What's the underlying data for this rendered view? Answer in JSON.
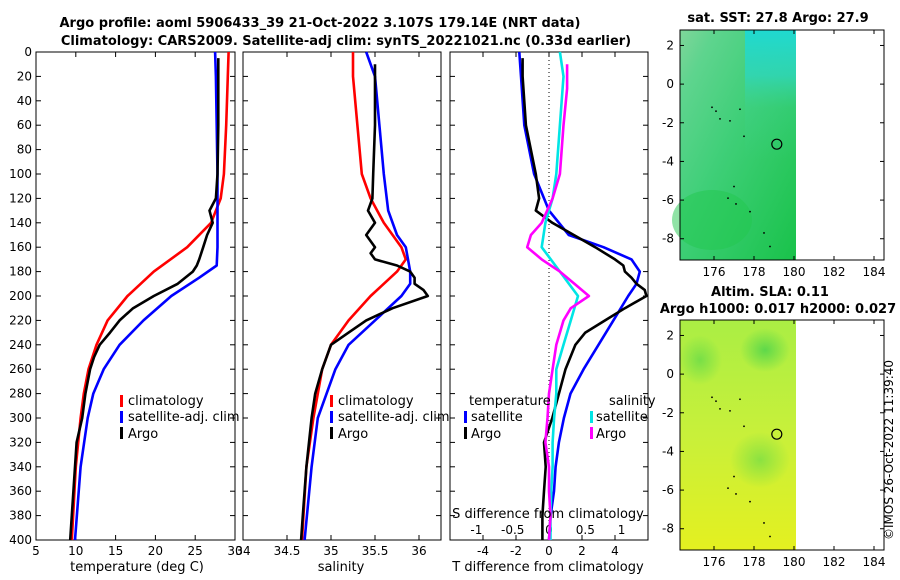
{
  "title": {
    "line1": "Argo profile: aoml 5906433_39 21-Oct-2022 3.107S 179.14E (NRT data)",
    "line2": "Climatology: CARS2009. Satellite-adj clim: synTS_20221021.nc (0.33d earlier)"
  },
  "colors": {
    "climatology": "#ff0000",
    "satellite": "#0000ff",
    "argo": "#000000",
    "sal_sat": "#00e5e5",
    "sal_argo": "#ff00ff"
  },
  "chart_data": [
    {
      "type": "line",
      "id": "temperature",
      "xlabel": "temperature (deg C)",
      "ylabel": "depth",
      "xlim": [
        5,
        30
      ],
      "ylim": [
        0,
        400
      ],
      "y_reversed": true,
      "xticks": [
        5,
        10,
        15,
        20,
        25,
        30
      ],
      "yticks": [
        0,
        20,
        40,
        60,
        80,
        100,
        120,
        140,
        160,
        180,
        200,
        220,
        240,
        260,
        280,
        300,
        320,
        340,
        360,
        380,
        400
      ],
      "legend": [
        "climatology",
        "satellite-adj. clim",
        "Argo"
      ],
      "series": [
        {
          "name": "climatology",
          "depth": [
            0,
            20,
            60,
            100,
            120,
            140,
            160,
            180,
            200,
            220,
            240,
            260,
            280,
            300,
            340,
            400
          ],
          "values": [
            29.2,
            29.1,
            28.9,
            28.6,
            28.2,
            27.0,
            24.0,
            19.8,
            16.5,
            14.0,
            12.6,
            11.6,
            11.0,
            10.6,
            10.0,
            9.5
          ]
        },
        {
          "name": "satellite-adj. clim",
          "depth": [
            0,
            20,
            60,
            100,
            140,
            160,
            175,
            185,
            200,
            220,
            240,
            260,
            280,
            300,
            340,
            400
          ],
          "values": [
            27.5,
            27.6,
            27.7,
            27.8,
            27.8,
            27.8,
            27.7,
            25.5,
            22.0,
            18.5,
            15.5,
            13.5,
            12.2,
            11.5,
            10.6,
            9.9
          ]
        },
        {
          "name": "Argo",
          "depth": [
            5,
            20,
            60,
            100,
            120,
            130,
            140,
            150,
            160,
            170,
            175,
            180,
            190,
            200,
            210,
            220,
            230,
            240,
            250,
            260,
            280,
            300,
            320,
            340,
            360,
            380,
            400
          ],
          "values": [
            27.9,
            27.9,
            27.9,
            27.8,
            27.6,
            26.8,
            27.2,
            26.5,
            26.0,
            25.5,
            25.2,
            24.7,
            22.8,
            19.8,
            17.2,
            15.5,
            14.3,
            13.0,
            12.3,
            11.8,
            11.2,
            10.8,
            10.1,
            9.9,
            9.7,
            9.5,
            9.3
          ]
        }
      ]
    },
    {
      "type": "line",
      "id": "salinity",
      "xlabel": "salinity",
      "xlim": [
        34,
        36.25
      ],
      "ylim": [
        0,
        400
      ],
      "y_reversed": true,
      "xticks": [
        34,
        34.5,
        35,
        35.5,
        36
      ],
      "legend": [
        "climatology",
        "satellite-adj. clim",
        "Argo"
      ],
      "series": [
        {
          "name": "climatology",
          "depth": [
            0,
            20,
            60,
            100,
            120,
            140,
            160,
            170,
            180,
            190,
            200,
            220,
            240,
            260,
            280,
            300,
            340,
            400
          ],
          "values": [
            35.25,
            35.25,
            35.3,
            35.35,
            35.45,
            35.6,
            35.8,
            35.85,
            35.75,
            35.6,
            35.45,
            35.2,
            35.0,
            34.9,
            34.85,
            34.8,
            34.72,
            34.67
          ]
        },
        {
          "name": "satellite-adj. clim",
          "depth": [
            0,
            20,
            60,
            100,
            130,
            150,
            160,
            180,
            190,
            200,
            220,
            240,
            260,
            280,
            300,
            340,
            400
          ],
          "values": [
            35.4,
            35.5,
            35.55,
            35.6,
            35.65,
            35.75,
            35.85,
            35.9,
            35.9,
            35.8,
            35.5,
            35.2,
            35.05,
            34.95,
            34.85,
            34.78,
            34.7
          ]
        },
        {
          "name": "Argo",
          "depth": [
            10,
            30,
            60,
            100,
            120,
            130,
            140,
            150,
            160,
            165,
            170,
            175,
            180,
            185,
            190,
            195,
            200,
            210,
            220,
            230,
            240,
            260,
            280,
            300,
            320,
            340,
            360,
            380,
            400
          ],
          "values": [
            35.5,
            35.5,
            35.5,
            35.48,
            35.47,
            35.42,
            35.5,
            35.4,
            35.5,
            35.45,
            35.5,
            35.75,
            35.9,
            35.95,
            35.95,
            36.05,
            36.1,
            35.7,
            35.4,
            35.2,
            35.0,
            34.9,
            34.82,
            34.78,
            34.75,
            34.72,
            34.7,
            34.68,
            34.66
          ]
        }
      ]
    },
    {
      "type": "line",
      "id": "difference",
      "xlabel": "T difference from climatology",
      "xlabel2": "S difference from climatology",
      "xlim": [
        -6,
        6
      ],
      "ylim": [
        0,
        400
      ],
      "y_reversed": true,
      "xticks": [
        -4,
        -2,
        0,
        2,
        4
      ],
      "xticks2": [
        -1,
        -0.5,
        0,
        0.5,
        1
      ],
      "legend_headers": [
        "temperature",
        "salinity"
      ],
      "legend": [
        "satellite",
        "Argo",
        "satellite",
        "Argo"
      ],
      "series": [
        {
          "name": "T satellite",
          "axis": "T",
          "depth": [
            0,
            20,
            60,
            100,
            130,
            150,
            160,
            170,
            180,
            190,
            200,
            220,
            240,
            260,
            280,
            300,
            320,
            340,
            360,
            380,
            400
          ],
          "values": [
            -1.8,
            -1.7,
            -1.5,
            -0.9,
            0.0,
            1.2,
            3.3,
            5.0,
            5.5,
            5.3,
            4.8,
            3.9,
            3.0,
            2.1,
            1.3,
            0.9,
            0.6,
            0.4,
            0.3,
            0.1,
            0.0
          ]
        },
        {
          "name": "T Argo",
          "axis": "T",
          "depth": [
            5,
            20,
            60,
            100,
            120,
            130,
            140,
            150,
            160,
            170,
            175,
            180,
            185,
            190,
            195,
            200,
            210,
            220,
            230,
            240,
            260,
            280,
            300,
            320,
            340,
            360,
            380,
            400
          ],
          "values": [
            -1.6,
            -1.6,
            -1.4,
            -0.8,
            -0.6,
            -0.8,
            0.2,
            1.5,
            2.8,
            4.0,
            4.5,
            4.6,
            5.0,
            5.3,
            5.8,
            5.9,
            4.6,
            3.4,
            2.2,
            1.6,
            1.0,
            0.6,
            0.2,
            -0.3,
            -0.2,
            -0.3,
            -0.4,
            -0.4
          ]
        },
        {
          "name": "S satellite",
          "axis": "S",
          "depth": [
            0,
            20,
            60,
            100,
            120,
            140,
            160,
            180,
            200,
            220,
            240,
            260,
            280,
            300,
            320,
            340,
            360,
            380,
            400
          ],
          "values": [
            0.15,
            0.2,
            0.15,
            0.1,
            0.05,
            -0.05,
            -0.1,
            0.15,
            0.4,
            0.3,
            0.2,
            0.1,
            0.1,
            0.07,
            0.05,
            0.05,
            0.03,
            0.02,
            0.02
          ]
        },
        {
          "name": "S Argo",
          "axis": "S",
          "depth": [
            10,
            30,
            60,
            100,
            120,
            140,
            150,
            160,
            170,
            180,
            190,
            200,
            210,
            220,
            230,
            240,
            260,
            280,
            300,
            320,
            340,
            360,
            380,
            400
          ],
          "values": [
            0.25,
            0.25,
            0.2,
            0.15,
            0.05,
            -0.1,
            -0.25,
            -0.3,
            -0.1,
            0.15,
            0.35,
            0.55,
            0.3,
            0.2,
            0.15,
            0.1,
            0.05,
            0.0,
            -0.02,
            -0.05,
            0.0,
            0.0,
            0.02,
            0.0
          ]
        }
      ]
    },
    {
      "type": "heatmap",
      "id": "sst_map",
      "title": "sat. SST: 27.8  Argo: 27.9",
      "xlim": [
        174.3,
        184.5
      ],
      "ylim": [
        -9.1,
        2.8
      ],
      "xticks": [
        176,
        178,
        180,
        182,
        184
      ],
      "yticks": [
        2,
        0,
        -2,
        -4,
        -6,
        -8
      ],
      "data_extent_lon": [
        174.3,
        180.0
      ],
      "argo_marker": {
        "lon": 179.14,
        "lat": -3.107
      }
    },
    {
      "type": "heatmap",
      "id": "sla_map",
      "title": "Altim. SLA: 0.11",
      "subtitle": "Argo h1000: 0.017 h2000: 0.027",
      "xlim": [
        174.3,
        184.5
      ],
      "ylim": [
        -9.1,
        2.8
      ],
      "xticks": [
        176,
        178,
        180,
        182,
        184
      ],
      "yticks": [
        2,
        0,
        -2,
        -4,
        -6,
        -8
      ],
      "data_extent_lon": [
        174.3,
        180.0
      ],
      "argo_marker": {
        "lon": 179.14,
        "lat": -3.107
      }
    }
  ],
  "credit": "©IMOS 26-Oct-2022 11:39:40"
}
